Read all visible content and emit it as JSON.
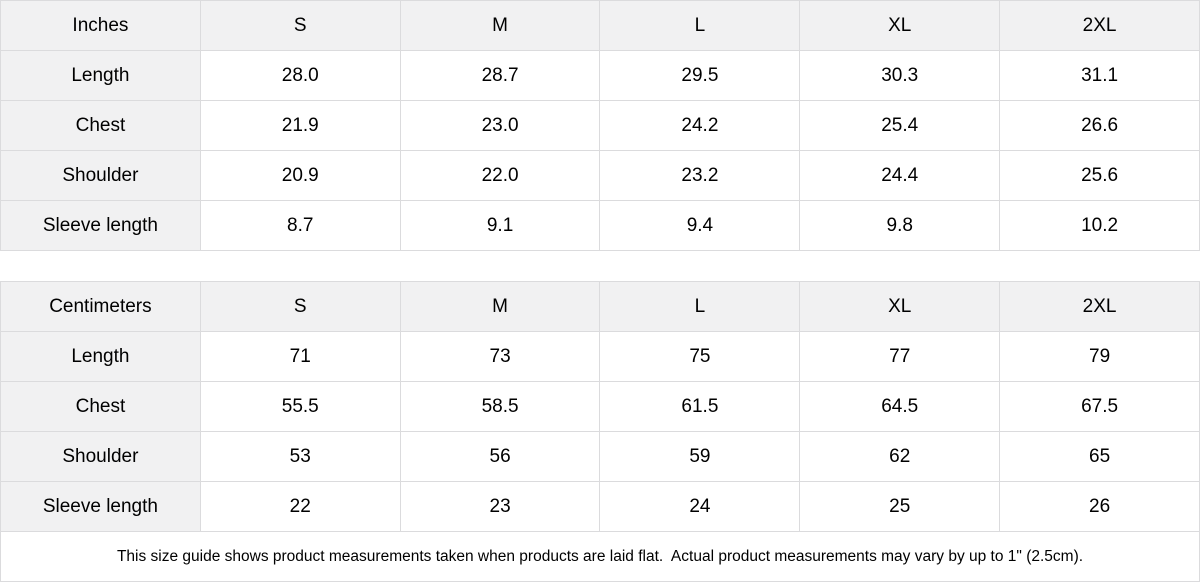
{
  "colors": {
    "header_bg": "#f1f1f2",
    "border": "#dbdbdd",
    "cell_bg": "#ffffff",
    "text": "#000000"
  },
  "tables": [
    {
      "unit": "Inches",
      "sizes": [
        "S",
        "M",
        "L",
        "XL",
        "2XL"
      ],
      "rows": [
        {
          "label": "Length",
          "values": [
            "28.0",
            "28.7",
            "29.5",
            "30.3",
            "31.1"
          ]
        },
        {
          "label": "Chest",
          "values": [
            "21.9",
            "23.0",
            "24.2",
            "25.4",
            "26.6"
          ]
        },
        {
          "label": "Shoulder",
          "values": [
            "20.9",
            "22.0",
            "23.2",
            "24.4",
            "25.6"
          ]
        },
        {
          "label": "Sleeve length",
          "values": [
            "8.7",
            "9.1",
            "9.4",
            "9.8",
            "10.2"
          ]
        }
      ]
    },
    {
      "unit": "Centimeters",
      "sizes": [
        "S",
        "M",
        "L",
        "XL",
        "2XL"
      ],
      "rows": [
        {
          "label": "Length",
          "values": [
            "71",
            "73",
            "75",
            "77",
            "79"
          ]
        },
        {
          "label": "Chest",
          "values": [
            "55.5",
            "58.5",
            "61.5",
            "64.5",
            "67.5"
          ]
        },
        {
          "label": "Shoulder",
          "values": [
            "53",
            "56",
            "59",
            "62",
            "65"
          ]
        },
        {
          "label": "Sleeve length",
          "values": [
            "22",
            "23",
            "24",
            "25",
            "26"
          ]
        }
      ]
    }
  ],
  "footer": {
    "note": "This size guide shows product measurements taken when products are laid flat.  Actual product measurements may vary by up to 1\" (2.5cm)."
  }
}
